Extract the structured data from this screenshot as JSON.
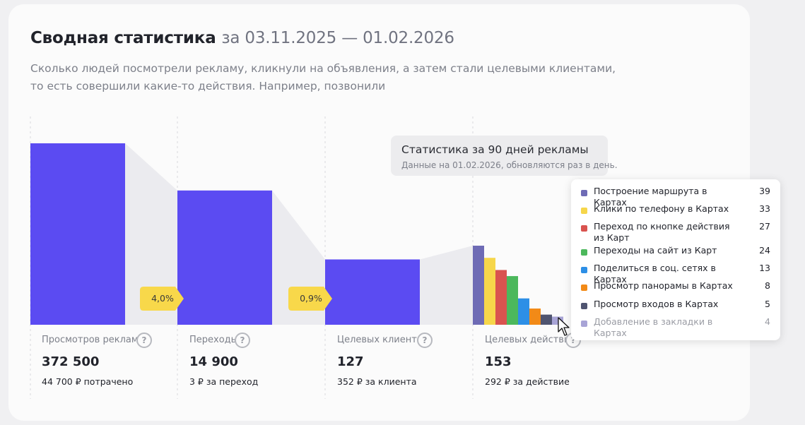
{
  "header": {
    "title": "Сводная статистика",
    "period": "за 03.11.2025 — 01.02.2026",
    "description_line1": "Сколько людей посмотрели рекламу, кликнули на объявления, а затем стали целевыми клиентами,",
    "description_line2": "то есть совершили какие-то действия. Например, позвонили"
  },
  "colors": {
    "funnel_bar": "#5b4bf2",
    "connector": "#ebebef",
    "badge": "#f8d84a"
  },
  "chart_data": {
    "type": "bar",
    "categories": [
      "Просмотров рекламы",
      "Переходы",
      "Целевых клиентов",
      "Целевых действий"
    ],
    "values": [
      372500,
      14900,
      127,
      153
    ],
    "conversion_badges": [
      "4,0%",
      "0,9%"
    ],
    "breakdown": {
      "series": [
        {
          "name": "Построение маршрута в Картах",
          "value": 39,
          "color": "#6e6bb5"
        },
        {
          "name": "Клики по телефону в Картах",
          "value": 33,
          "color": "#f6d64a"
        },
        {
          "name": "Переход по кнопке действия из Карт",
          "value": 27,
          "color": "#d9534f"
        },
        {
          "name": "Переходы на сайт из Карт",
          "value": 24,
          "color": "#4cb85c"
        },
        {
          "name": "Поделиться в соц. сетях в Картах",
          "value": 13,
          "color": "#2d8fe6"
        },
        {
          "name": "Просмотр панорамы в Картах",
          "value": 8,
          "color": "#f28a17"
        },
        {
          "name": "Просмотр входов в Картах",
          "value": 5,
          "color": "#4f5470"
        },
        {
          "name": "Добавление в закладки в Картах",
          "value": 4,
          "color": "#a8a4d6"
        }
      ]
    }
  },
  "metrics": [
    {
      "label": "Просмотров рекламы",
      "value": "372 500",
      "note": "44 700 ₽ потрачено"
    },
    {
      "label": "Переходы",
      "value": "14 900",
      "note": "3 ₽ за переход"
    },
    {
      "label": "Целевых клиентов",
      "value": "127",
      "note": "352 ₽ за клиента"
    },
    {
      "label": "Целевых действий",
      "value": "153",
      "note": "292 ₽ за действие"
    }
  ],
  "tooltip": {
    "title": "Статистика за 90 дней рекламы",
    "note": "Данные на 01.02.2026, обновляются раз в день."
  },
  "legend": {
    "items": [
      {
        "label": "Построение маршрута в Картах",
        "value": "39"
      },
      {
        "label": "Клики по телефону в Картах",
        "value": "33"
      },
      {
        "label": "Переход по кнопке действия из Карт",
        "value": "27"
      },
      {
        "label": "Переходы на сайт из Карт",
        "value": "24"
      },
      {
        "label": "Поделиться в соц. сетях в Картах",
        "value": "13"
      },
      {
        "label": "Просмотр панорамы в Картах",
        "value": "8"
      },
      {
        "label": "Просмотр входов в Картах",
        "value": "5"
      },
      {
        "label": "Добавление в закладки в Картах",
        "value": "4"
      }
    ]
  },
  "help_icon_glyph": "?"
}
